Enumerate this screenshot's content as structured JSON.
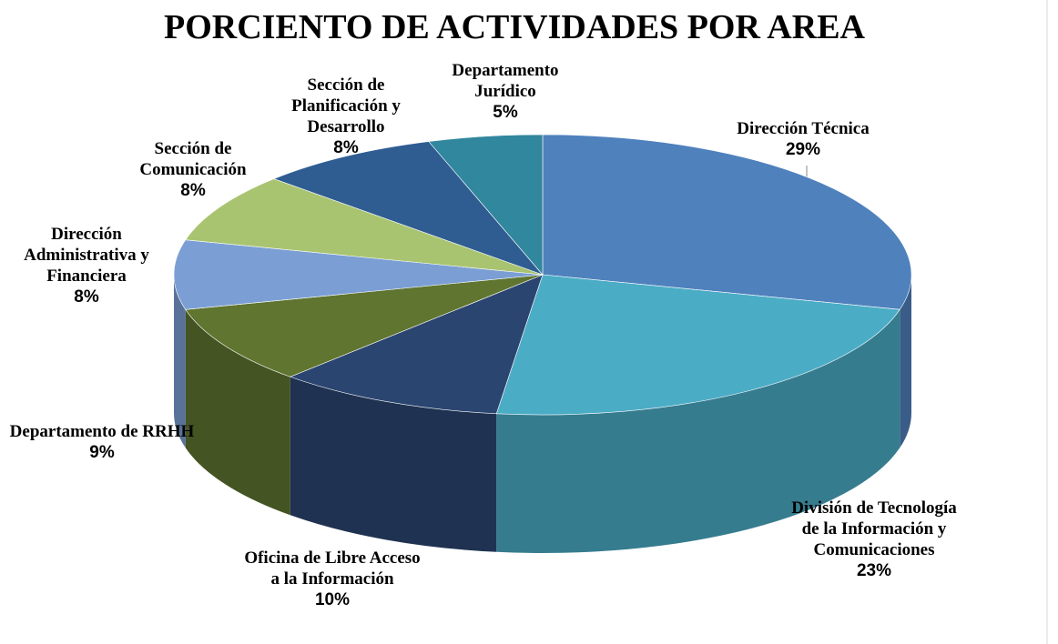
{
  "chart_data": {
    "type": "pie3d",
    "title": "PORCIENTO DE ACTIVIDADES POR AREA",
    "categories": [
      "Dirección Técnica",
      "División de Tecnología de la Información y Comunicaciones",
      "Oficina de Libre Acceso a la Información",
      "Departamento de RRHH",
      "Dirección Administrativa y Financiera",
      "Sección de Comunicación",
      "Sección de Planificación y Desarrollo",
      "Departamento Jurídico"
    ],
    "values": [
      29,
      23,
      10,
      9,
      8,
      8,
      8,
      5
    ],
    "value_labels": [
      "29%",
      "23%",
      "10%",
      "9%",
      "8%",
      "8%",
      "8%",
      "5%"
    ],
    "colors": [
      "#4f81bd",
      "#4bacc6",
      "#2b4571",
      "#5f7530",
      "#7b9fd4",
      "#a9c470",
      "#2f5d92",
      "#31879d"
    ]
  }
}
